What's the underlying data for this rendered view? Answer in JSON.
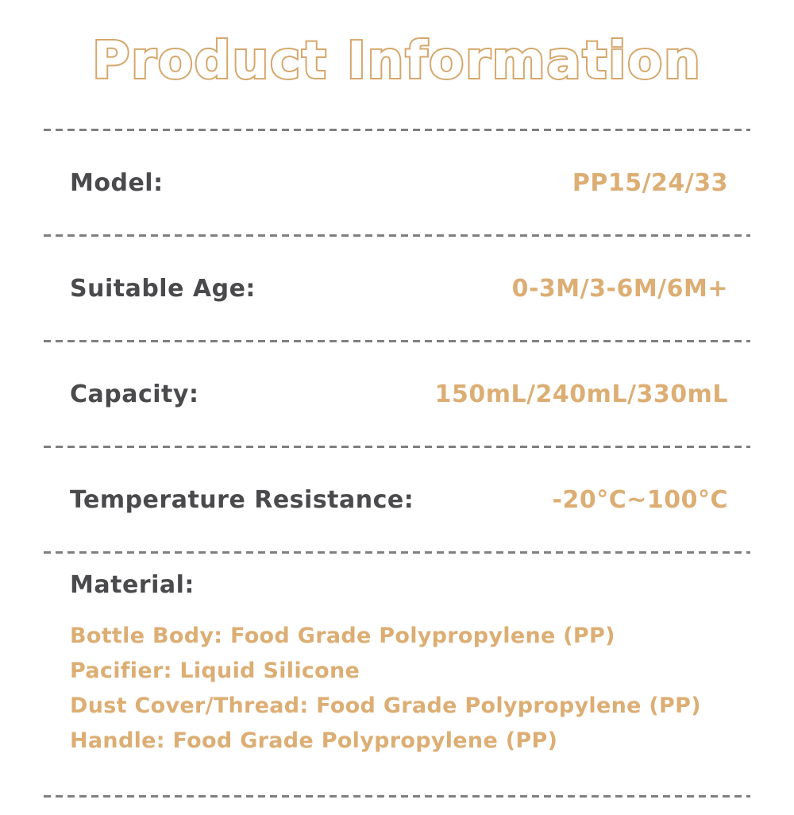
{
  "page": {
    "title": "Product Information",
    "colors": {
      "accent_tan": "#dcae74",
      "title_outline": "#d5a76c",
      "label_gray": "#4a4a4d",
      "dash_gray": "#7f7f7f",
      "background": "#ffffff"
    }
  },
  "rows": [
    {
      "label": "Model:",
      "value": "PP15/24/33"
    },
    {
      "label": "Suitable Age:",
      "value": "0-3M/3-6M/6M+"
    },
    {
      "label": "Capacity:",
      "value": "150mL/240mL/330mL"
    },
    {
      "label": "Temperature Resistance:",
      "value": "-20°C~100°C"
    }
  ],
  "material": {
    "label": "Material:",
    "lines": [
      "Bottle Body: Food Grade Polypropylene (PP)",
      "Pacifier: Liquid Silicone",
      "Dust Cover/Thread: Food Grade Polypropylene (PP)",
      "Handle: Food Grade Polypropylene (PP)"
    ]
  }
}
